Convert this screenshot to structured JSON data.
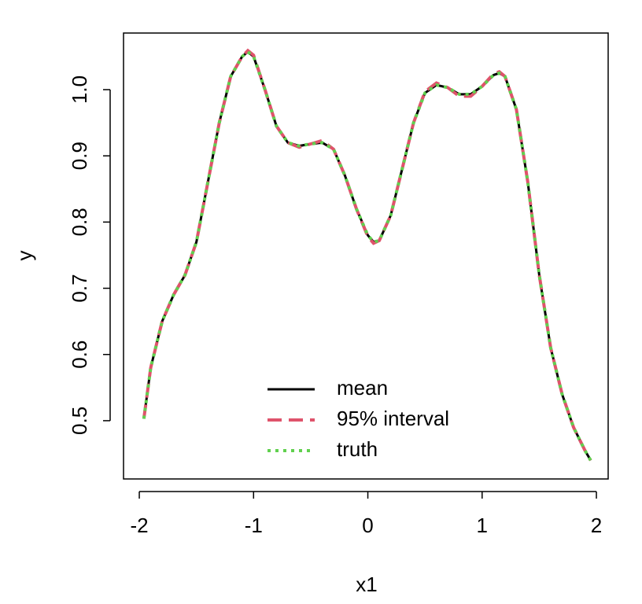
{
  "chart_data": {
    "type": "line",
    "x_label": "x1",
    "y_label": "y",
    "x": [
      -1.96,
      -1.9,
      -1.8,
      -1.7,
      -1.6,
      -1.5,
      -1.4,
      -1.3,
      -1.2,
      -1.1,
      -1.05,
      -1.0,
      -0.9,
      -0.8,
      -0.7,
      -0.6,
      -0.5,
      -0.4,
      -0.3,
      -0.2,
      -0.1,
      0.0,
      0.05,
      0.1,
      0.2,
      0.3,
      0.4,
      0.5,
      0.6,
      0.7,
      0.8,
      0.9,
      1.0,
      1.1,
      1.15,
      1.2,
      1.3,
      1.4,
      1.5,
      1.6,
      1.7,
      1.8,
      1.9,
      1.95
    ],
    "series": [
      {
        "name": "mean",
        "color": "#000000",
        "linestyle": "solid",
        "values": [
          0.503,
          0.58,
          0.65,
          0.69,
          0.72,
          0.77,
          0.86,
          0.95,
          1.02,
          1.05,
          1.057,
          1.05,
          1.0,
          0.945,
          0.92,
          0.915,
          0.918,
          0.92,
          0.91,
          0.87,
          0.82,
          0.78,
          0.77,
          0.772,
          0.81,
          0.88,
          0.95,
          0.995,
          1.007,
          1.003,
          0.993,
          0.993,
          1.005,
          1.022,
          1.025,
          1.02,
          0.97,
          0.86,
          0.72,
          0.61,
          0.54,
          0.49,
          0.455,
          0.44
        ]
      },
      {
        "name": "95% interval",
        "color": "#DF536B",
        "linestyle": "dashed",
        "values": [
          0.503,
          0.58,
          0.65,
          0.69,
          0.72,
          0.77,
          0.86,
          0.95,
          1.02,
          1.05,
          1.059,
          1.052,
          1.0,
          0.945,
          0.92,
          0.913,
          0.918,
          0.923,
          0.91,
          0.87,
          0.82,
          0.778,
          0.768,
          0.772,
          0.81,
          0.88,
          0.95,
          0.997,
          1.01,
          1.003,
          0.99,
          0.99,
          1.005,
          1.024,
          1.027,
          1.02,
          0.97,
          0.86,
          0.72,
          0.61,
          0.54,
          0.49,
          0.455,
          0.44
        ]
      },
      {
        "name": "truth",
        "color": "#61D04F",
        "linestyle": "dotted",
        "values": [
          0.503,
          0.58,
          0.65,
          0.69,
          0.72,
          0.77,
          0.86,
          0.95,
          1.02,
          1.05,
          1.057,
          1.05,
          1.0,
          0.945,
          0.92,
          0.915,
          0.918,
          0.92,
          0.91,
          0.87,
          0.82,
          0.78,
          0.77,
          0.772,
          0.81,
          0.88,
          0.95,
          0.995,
          1.007,
          1.003,
          0.993,
          0.993,
          1.005,
          1.022,
          1.025,
          1.02,
          0.97,
          0.86,
          0.72,
          0.61,
          0.54,
          0.49,
          0.455,
          0.44
        ]
      }
    ],
    "xlim": [
      -2.138,
      2.103
    ],
    "ylim": [
      0.412,
      1.0855
    ],
    "xticks": [
      -2,
      -1,
      0,
      1,
      2
    ],
    "yticks": [
      0.5,
      0.6,
      0.7,
      0.8,
      0.9,
      {
        "value": 1,
        "label": "1.0"
      }
    ],
    "legend": "bottom"
  }
}
